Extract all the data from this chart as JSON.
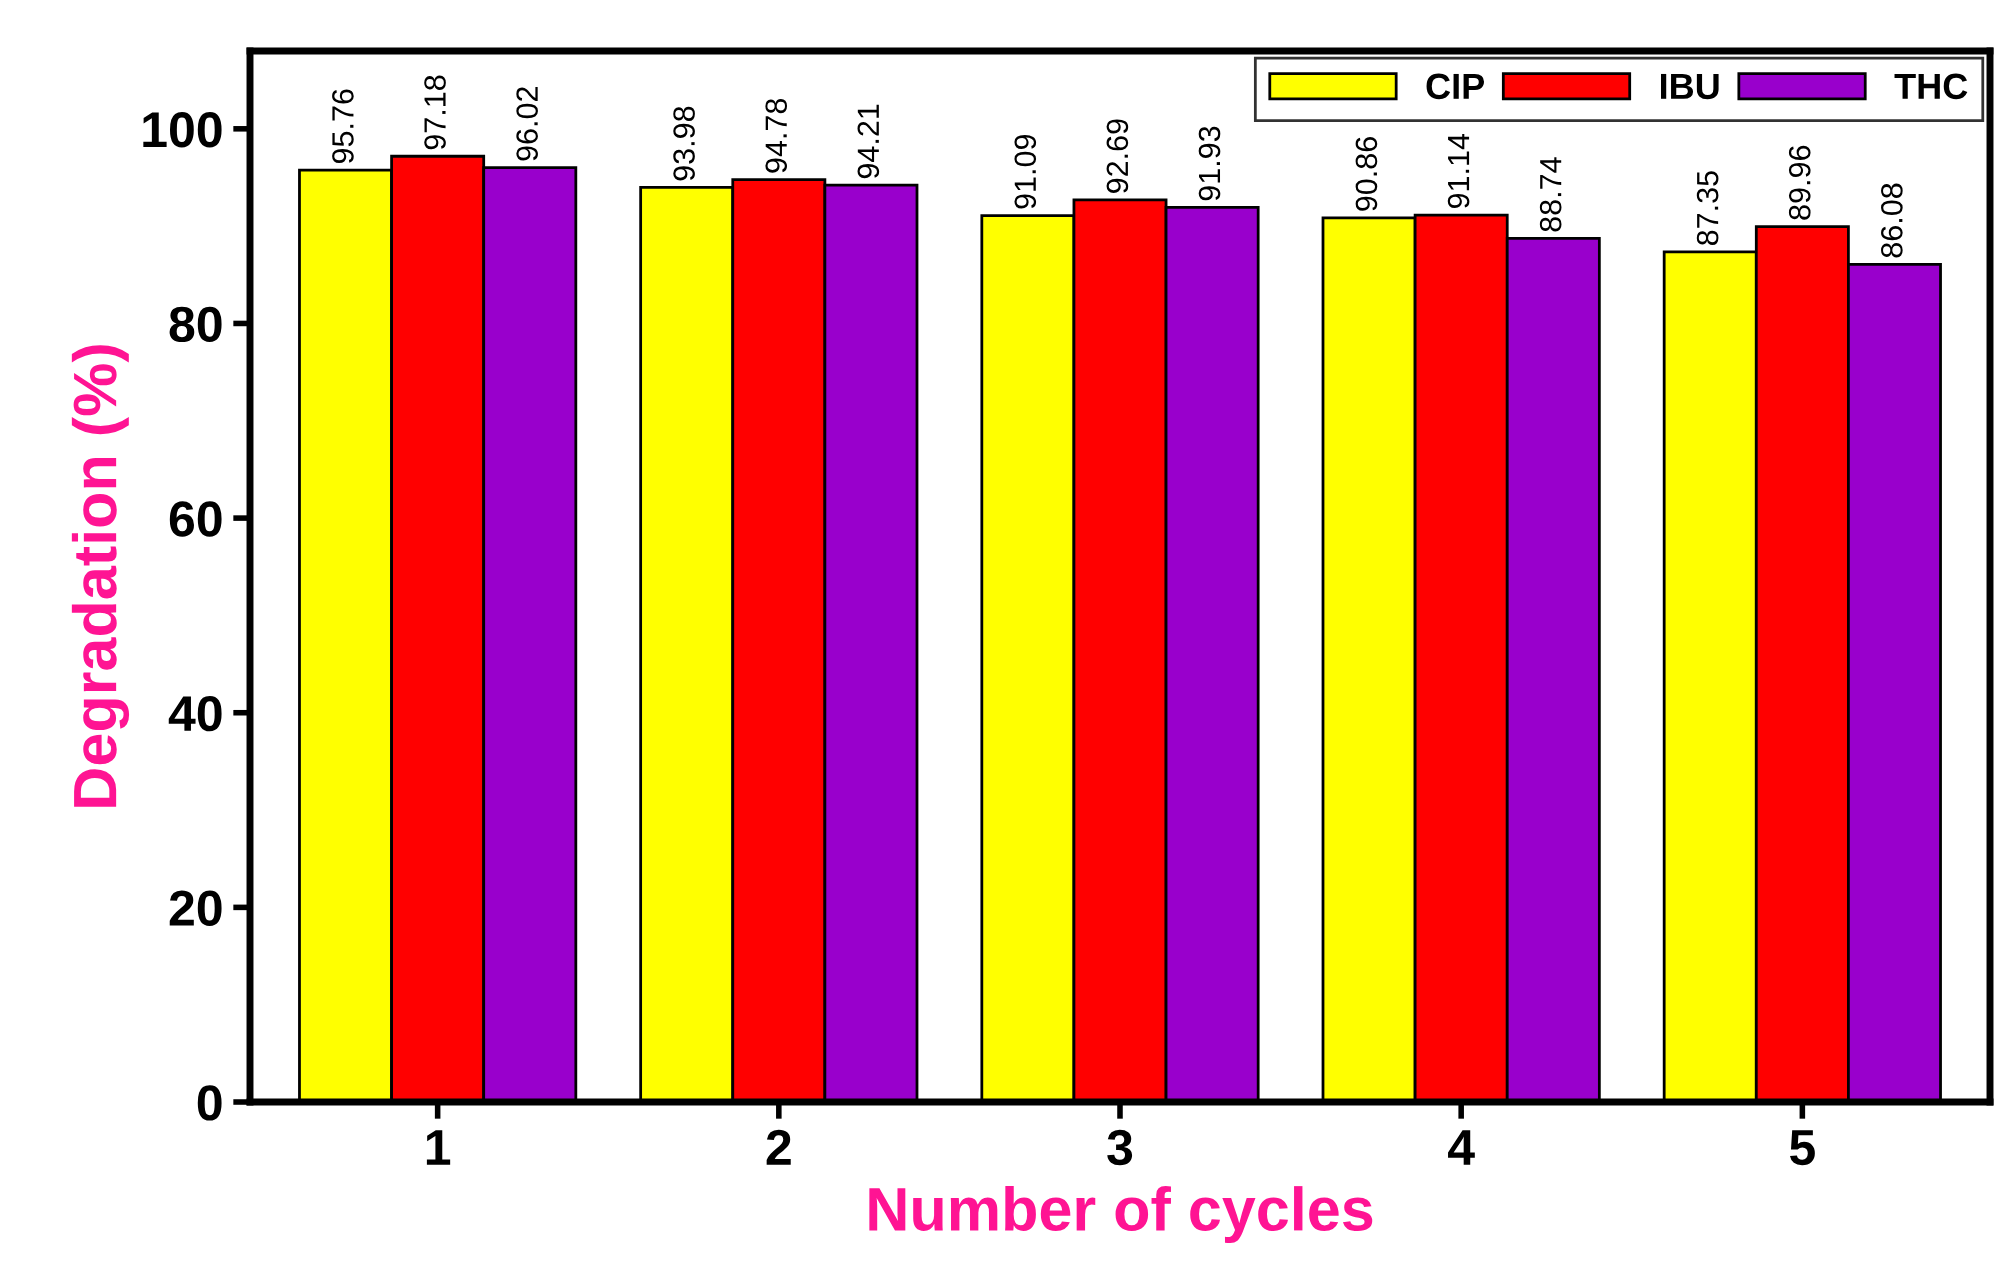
{
  "chart_data": {
    "type": "bar",
    "xlabel": "Number of cycles",
    "ylabel": "Degradation (%)",
    "categories": [
      "1",
      "2",
      "3",
      "4",
      "5"
    ],
    "series": [
      {
        "name": "CIP",
        "color": "#ffff00",
        "values": [
          95.76,
          93.98,
          91.09,
          90.86,
          87.35
        ]
      },
      {
        "name": "IBU",
        "color": "#ff0000",
        "values": [
          97.18,
          94.78,
          92.69,
          91.14,
          89.96
        ]
      },
      {
        "name": "THC",
        "color": "#9900cc",
        "values": [
          96.02,
          94.21,
          91.93,
          88.74,
          86.08
        ]
      }
    ],
    "ylim": [
      0,
      108
    ],
    "yticks": [
      0,
      20,
      40,
      60,
      80,
      100
    ],
    "data_labels": true,
    "legend": "top right",
    "grid": false
  }
}
